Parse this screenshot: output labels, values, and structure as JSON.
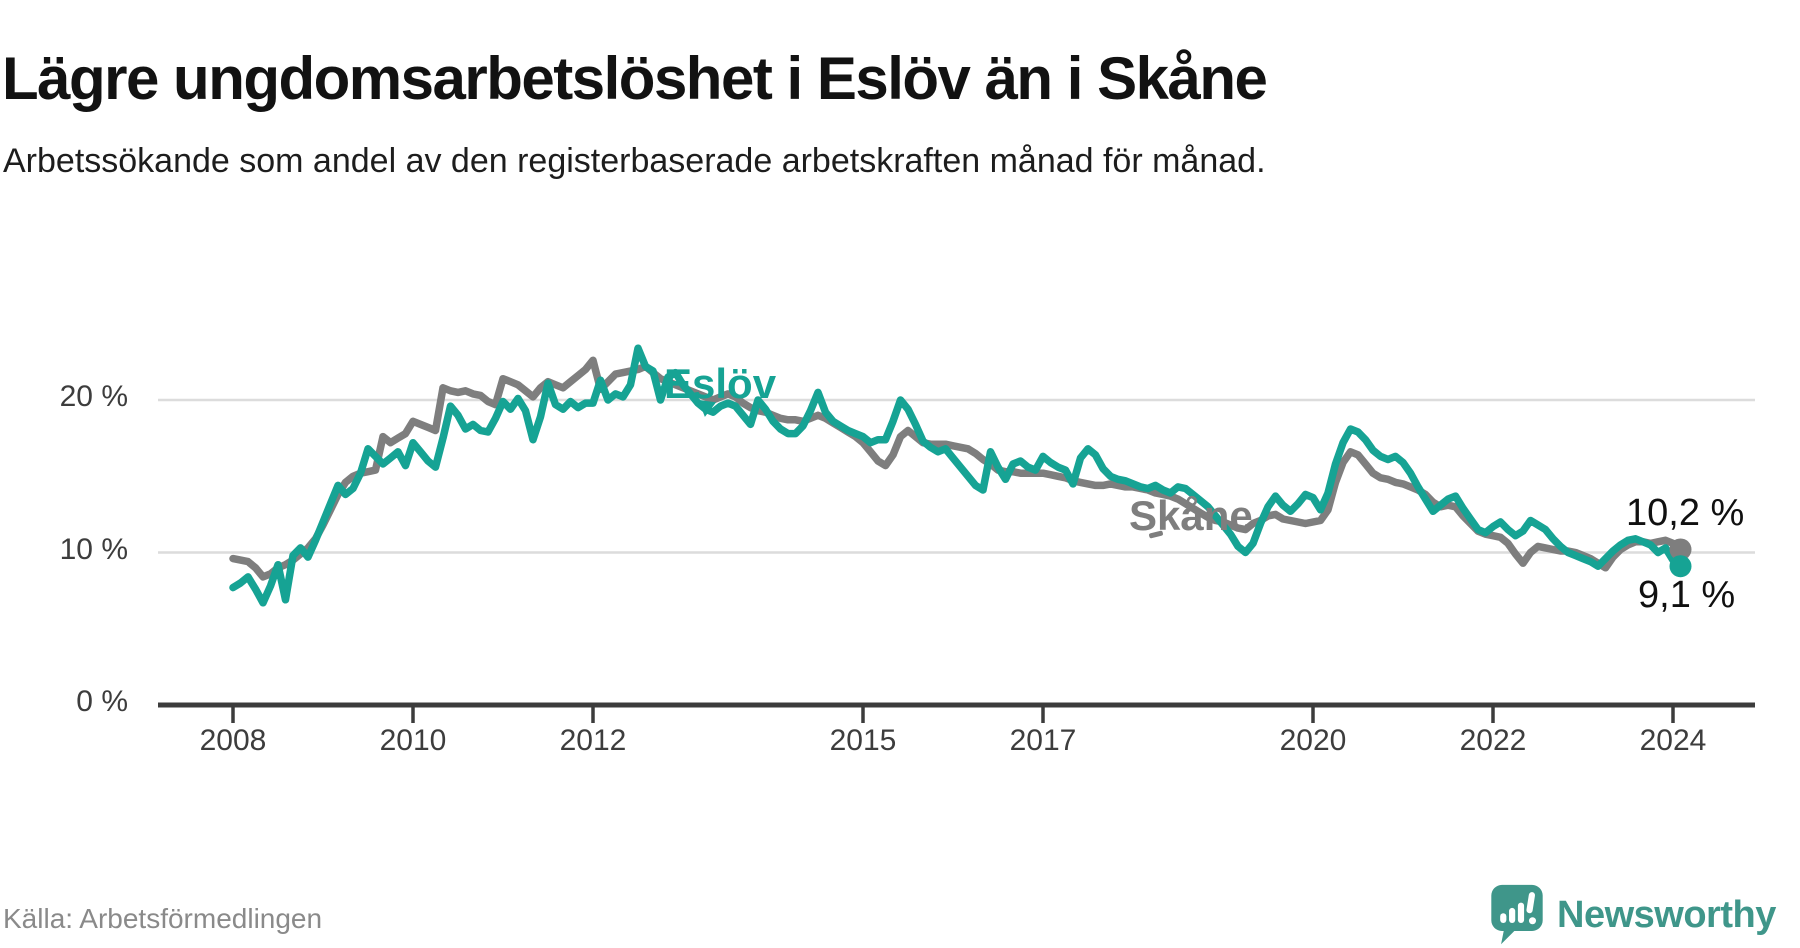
{
  "header": {
    "title": "Lägre ungdomsarbetslöshet i Eslöv än i Skåne",
    "subtitle": "Arbetssökande som andel av den registerbaserade arbetskraften månad för månad."
  },
  "footer": {
    "source": "Källa: Arbetsförmedlingen",
    "logo_text": "Newsworthy"
  },
  "colors": {
    "eslov": "#16a394",
    "skane": "#7e7e7e",
    "grid": "#dcdcdc",
    "axis": "#3c3c3c",
    "tick_label": "#3d3d3d",
    "title": "#121212",
    "subtitle": "#1d1d1d",
    "value_label": "#101010",
    "source": "#8a8a8a",
    "logo": "#3f968a"
  },
  "chart_data": {
    "type": "line",
    "title": "Lägre ungdomsarbetslöshet i Eslöv än i Skåne",
    "subtitle": "Arbetssökande som andel av den registerbaserade arbetskraften månad för månad.",
    "unit": "%",
    "x_start_year": 2008,
    "x_step_months": 1,
    "x_end": "2024-02",
    "grid": "horizontal",
    "legend_position": "inline-labels",
    "x_axis": {
      "ticks": [
        2008,
        2010,
        2012,
        2015,
        2017,
        2020,
        2022,
        2024
      ],
      "tick_labels": [
        "2008",
        "2010",
        "2012",
        "2015",
        "2017",
        "2020",
        "2022",
        "2024"
      ]
    },
    "y_axis": {
      "ticks": [
        0,
        10,
        20
      ],
      "tick_labels": [
        "0 %",
        "10 %",
        "20 %"
      ],
      "ylim": [
        0,
        24.6
      ]
    },
    "end_labels": {
      "skane": "10,2 %",
      "eslov": "9,1 %"
    },
    "series": [
      {
        "name": "Eslöv",
        "color": "#16a394",
        "end_value": 9.1,
        "values": [
          7.7,
          8.0,
          8.4,
          7.6,
          6.7,
          7.8,
          9.2,
          6.9,
          9.8,
          10.3,
          9.7,
          10.8,
          12.0,
          13.2,
          14.4,
          13.8,
          14.2,
          15.2,
          16.8,
          16.3,
          15.8,
          16.2,
          16.6,
          15.7,
          17.2,
          16.6,
          16.0,
          15.6,
          17.5,
          19.6,
          19.0,
          18.1,
          18.4,
          18.0,
          17.9,
          18.8,
          19.9,
          19.4,
          20.1,
          19.3,
          17.4,
          18.9,
          21.1,
          19.7,
          19.4,
          19.9,
          19.5,
          19.8,
          19.8,
          21.3,
          20.0,
          20.4,
          20.2,
          21.0,
          23.4,
          22.2,
          21.9,
          20.0,
          21.5,
          21.8,
          21.0,
          20.4,
          19.8,
          19.4,
          19.2,
          19.6,
          19.8,
          19.6,
          19.0,
          18.4,
          20.0,
          19.4,
          18.6,
          18.1,
          17.8,
          17.8,
          18.3,
          19.3,
          20.5,
          19.2,
          18.6,
          18.3,
          18.0,
          17.8,
          17.6,
          17.2,
          17.4,
          17.4,
          18.6,
          20.0,
          19.4,
          18.4,
          17.3,
          16.9,
          16.6,
          16.8,
          16.2,
          15.6,
          15.0,
          14.4,
          14.1,
          16.6,
          15.6,
          14.8,
          15.8,
          16.0,
          15.6,
          15.4,
          16.3,
          15.9,
          15.6,
          15.4,
          14.5,
          16.2,
          16.8,
          16.4,
          15.5,
          15.0,
          14.8,
          14.7,
          14.5,
          14.3,
          14.2,
          14.4,
          14.1,
          13.9,
          14.3,
          14.2,
          13.8,
          13.4,
          13.0,
          12.4,
          11.8,
          11.2,
          10.4,
          10.0,
          10.6,
          11.9,
          13.0,
          13.7,
          13.1,
          12.7,
          13.2,
          13.8,
          13.6,
          12.8,
          13.9,
          15.8,
          17.2,
          18.1,
          17.9,
          17.4,
          16.7,
          16.3,
          16.1,
          16.3,
          15.9,
          15.2,
          14.3,
          13.5,
          12.7,
          13.1,
          13.5,
          13.7,
          12.9,
          12.2,
          11.5,
          11.3,
          11.7,
          12.0,
          11.5,
          11.1,
          11.4,
          12.1,
          11.8,
          11.5,
          10.9,
          10.4,
          10.0,
          9.8,
          9.6,
          9.4,
          9.1,
          9.6,
          10.1,
          10.5,
          10.8,
          10.9,
          10.7,
          10.5,
          10.0,
          10.3,
          9.5,
          9.1
        ]
      },
      {
        "name": "Skåne",
        "color": "#7e7e7e",
        "end_value": 10.2,
        "values": [
          9.6,
          9.5,
          9.4,
          9.0,
          8.4,
          8.6,
          9.0,
          9.2,
          9.5,
          9.9,
          10.3,
          10.9,
          11.8,
          12.8,
          13.8,
          14.6,
          15.0,
          15.2,
          15.3,
          15.4,
          17.6,
          17.2,
          17.5,
          17.8,
          18.6,
          18.4,
          18.2,
          18.0,
          20.8,
          20.6,
          20.5,
          20.6,
          20.4,
          20.3,
          19.9,
          19.7,
          21.4,
          21.2,
          21.0,
          20.6,
          20.2,
          20.8,
          21.2,
          21.0,
          20.8,
          21.2,
          21.6,
          22.0,
          22.6,
          20.7,
          21.2,
          21.7,
          21.8,
          21.9,
          22.0,
          22.2,
          21.8,
          21.4,
          21.2,
          21.0,
          20.8,
          20.6,
          20.4,
          20.2,
          20.0,
          20.2,
          20.4,
          20.2,
          19.8,
          19.5,
          19.3,
          19.2,
          19.0,
          18.8,
          18.7,
          18.7,
          18.6,
          18.8,
          19.0,
          18.8,
          18.5,
          18.2,
          17.9,
          17.6,
          17.2,
          16.6,
          16.0,
          15.7,
          16.4,
          17.6,
          18.0,
          17.6,
          17.2,
          17.1,
          17.1,
          17.1,
          17.0,
          16.9,
          16.8,
          16.5,
          16.1,
          15.8,
          15.4,
          15.3,
          15.3,
          15.2,
          15.2,
          15.2,
          15.2,
          15.1,
          15.0,
          14.9,
          14.7,
          14.6,
          14.5,
          14.4,
          14.4,
          14.5,
          14.4,
          14.3,
          14.3,
          14.2,
          14.1,
          13.9,
          13.8,
          13.7,
          13.5,
          13.2,
          12.9,
          12.6,
          12.3,
          12.1,
          12.0,
          11.8,
          11.6,
          11.5,
          11.9,
          12.1,
          12.4,
          12.5,
          12.2,
          12.1,
          12.0,
          11.9,
          12.0,
          12.1,
          12.8,
          14.6,
          15.9,
          16.6,
          16.4,
          15.8,
          15.2,
          14.9,
          14.8,
          14.6,
          14.5,
          14.3,
          14.1,
          13.8,
          13.3,
          13.0,
          13.1,
          13.0,
          12.4,
          11.9,
          11.4,
          11.2,
          11.1,
          11.0,
          10.6,
          9.9,
          9.3,
          10.0,
          10.4,
          10.3,
          10.2,
          10.1,
          10.1,
          10.0,
          9.8,
          9.6,
          9.3,
          9.0,
          9.7,
          10.2,
          10.5,
          10.7,
          10.7,
          10.6,
          10.7,
          10.8,
          10.6,
          10.2
        ]
      }
    ]
  }
}
